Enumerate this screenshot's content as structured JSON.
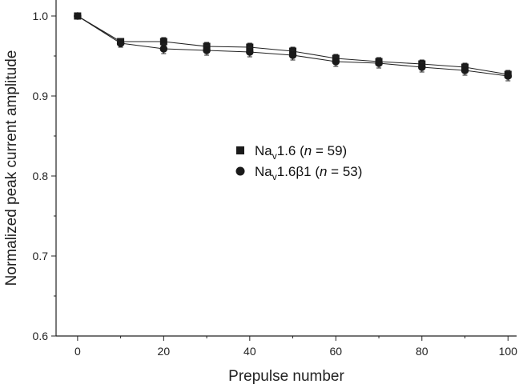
{
  "chart_data": {
    "type": "line",
    "xlabel": "Prepulse number",
    "ylabel": "Normalized peak current amplitude",
    "xlim": [
      -5,
      102
    ],
    "ylim": [
      0.6,
      1.02
    ],
    "xticks": [
      0,
      20,
      40,
      60,
      80,
      100
    ],
    "xticks_minor": [
      10,
      30,
      50,
      70,
      90
    ],
    "yticks": [
      0.6,
      0.7,
      0.8,
      0.9,
      1.0
    ],
    "yticks_minor": [
      0.65,
      0.75,
      0.85,
      0.95
    ],
    "ytick_labels": [
      "0.6",
      "0.7",
      "0.8",
      "0.9",
      "1.0"
    ],
    "grid": false,
    "legend_position": "center-right",
    "x": [
      0,
      10,
      20,
      30,
      40,
      50,
      60,
      70,
      80,
      90,
      100
    ],
    "series": [
      {
        "marker": "square",
        "legend_prefix": "Na",
        "legend_sub": "v",
        "legend_main": "1.6 (",
        "legend_italic": "n",
        "legend_tail": " = 59)",
        "values": [
          1.0,
          0.968,
          0.968,
          0.962,
          0.961,
          0.956,
          0.947,
          0.943,
          0.94,
          0.936,
          0.927
        ],
        "errors": [
          0.002,
          0.004,
          0.005,
          0.005,
          0.005,
          0.005,
          0.005,
          0.005,
          0.005,
          0.005,
          0.005
        ]
      },
      {
        "marker": "circle",
        "legend_prefix": "Na",
        "legend_sub": "v",
        "legend_main": "1.6β1 (",
        "legend_italic": "n",
        "legend_tail": " = 53)",
        "values": [
          1.0,
          0.966,
          0.959,
          0.957,
          0.955,
          0.951,
          0.943,
          0.941,
          0.936,
          0.932,
          0.925
        ],
        "errors": [
          0.002,
          0.005,
          0.006,
          0.006,
          0.006,
          0.006,
          0.006,
          0.006,
          0.006,
          0.006,
          0.006
        ]
      }
    ]
  }
}
